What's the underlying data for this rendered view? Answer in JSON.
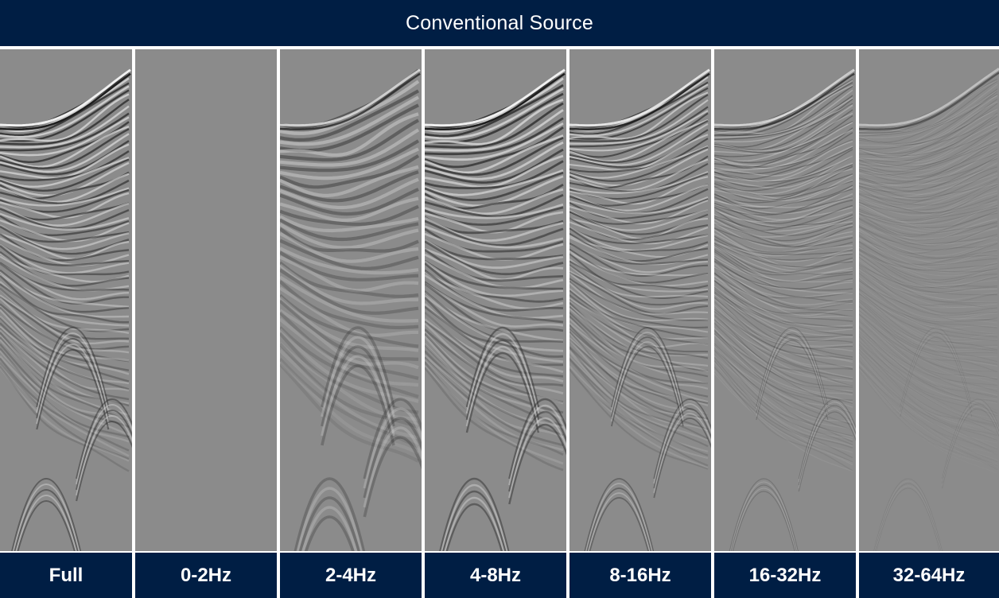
{
  "header": {
    "title": "Conventional Source"
  },
  "panels": [
    {
      "label": "Full",
      "intensity": 1.0,
      "detail": "broadband"
    },
    {
      "label": "0-2Hz",
      "intensity": 0.0,
      "detail": "flat"
    },
    {
      "label": "2-4Hz",
      "intensity": 0.6,
      "detail": "low"
    },
    {
      "label": "4-8Hz",
      "intensity": 1.0,
      "detail": "mid"
    },
    {
      "label": "8-16Hz",
      "intensity": 0.85,
      "detail": "mid-high"
    },
    {
      "label": "16-32Hz",
      "intensity": 0.5,
      "detail": "high"
    },
    {
      "label": "32-64Hz",
      "intensity": 0.2,
      "detail": "very-high"
    }
  ],
  "colors": {
    "banner": "#001e44",
    "banner_text": "#ffffff",
    "background_gray": "#8c8c8c",
    "divider": "#ffffff"
  }
}
